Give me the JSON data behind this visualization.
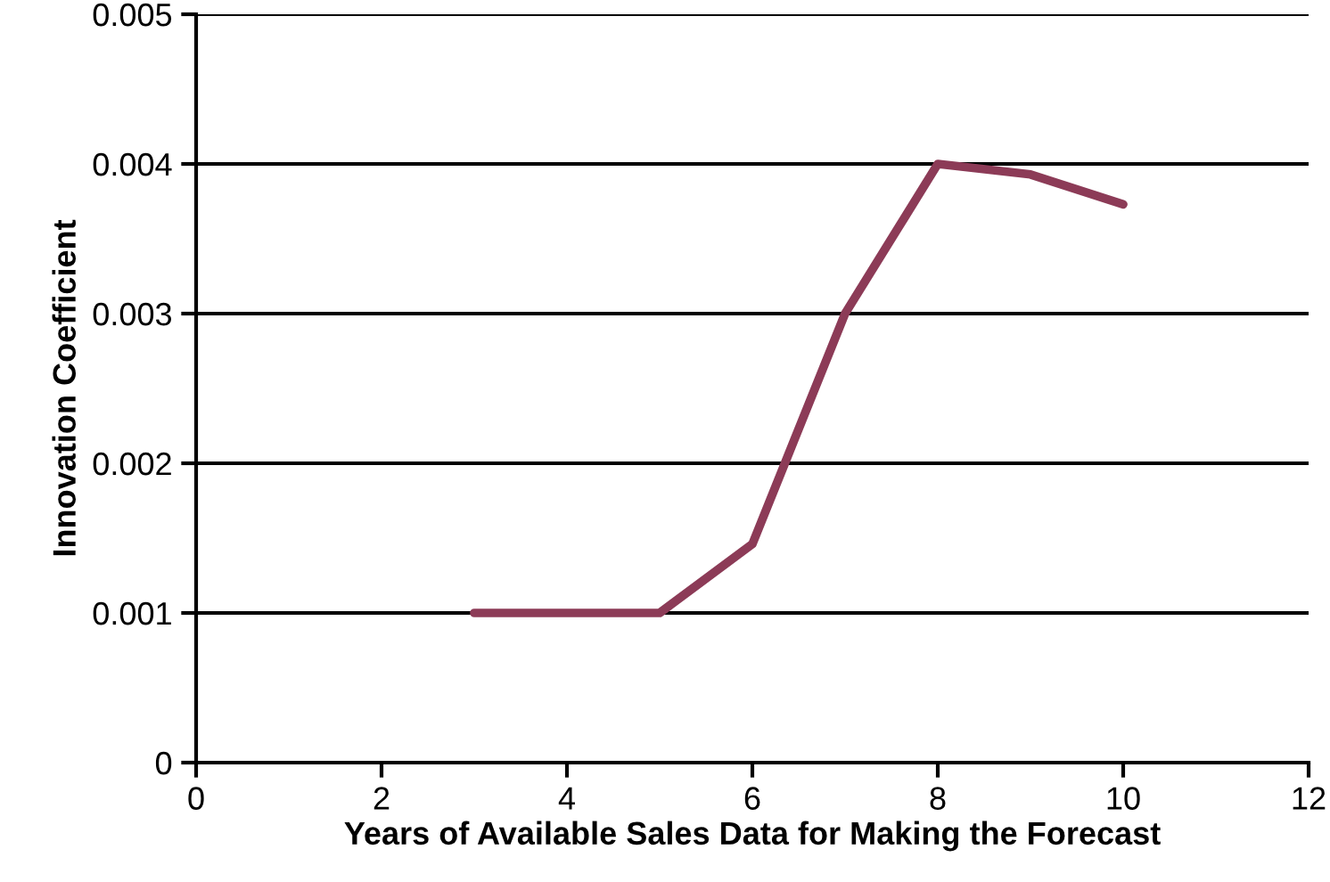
{
  "chart_data": {
    "type": "line",
    "xlabel": "Years of Available Sales Data for Making the Forecast",
    "ylabel": "Innovation Coefficient",
    "x": [
      3,
      4,
      5,
      6,
      7,
      8,
      9,
      10
    ],
    "series": [
      {
        "color": "#8c3b57",
        "values": [
          0.001,
          0.001,
          0.001,
          0.00146,
          0.003,
          0.004,
          0.00393,
          0.00373
        ]
      }
    ],
    "xlim": [
      0,
      12
    ],
    "xticks": [
      0,
      2,
      4,
      6,
      8,
      10,
      12
    ],
    "ylim": [
      0,
      0.005
    ],
    "yticks": [
      {
        "value": 0,
        "label": "0"
      },
      0.001,
      0.002,
      0.003,
      0.004,
      0.005
    ],
    "grid": "y",
    "marker": "none",
    "line_style": "solid"
  }
}
